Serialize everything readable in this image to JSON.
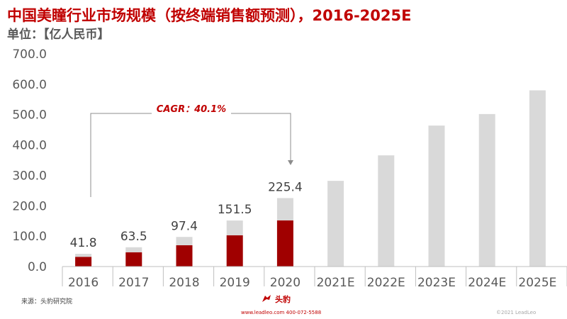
{
  "title": "中国美瞳行业市场规模（按终端销售额预测），2016-2025E",
  "subtitle": "单位：【亿人民币】",
  "annotation": "CAGR：40.1%",
  "footer": {
    "source": "来源：头豹研究院",
    "brand": "头豹",
    "contact": "www.leadleo.com  400-072-5588",
    "copyright": "©2021 LeadLeo"
  },
  "colors": {
    "title": "#c00000",
    "bar_dark": "#a00000",
    "bar_light": "#d9d9d9",
    "axis_text": "#595959"
  },
  "chart_data": {
    "type": "bar",
    "categories": [
      "2016",
      "2017",
      "2018",
      "2019",
      "2020",
      "2021E",
      "2022E",
      "2023E",
      "2024E",
      "2025E"
    ],
    "totals": [
      41.8,
      63.5,
      97.4,
      151.5,
      225.4,
      282,
      366,
      464,
      502,
      580
    ],
    "data_labels": [
      "41.8",
      "63.5",
      "97.4",
      "151.5",
      "225.4",
      "",
      "",
      "",
      "",
      ""
    ],
    "series": [
      {
        "values": [
          32,
          47,
          70,
          103,
          152,
          null,
          null,
          null,
          null,
          null
        ]
      },
      {
        "values": [
          9.8,
          16.5,
          27.4,
          48.5,
          73.4,
          282,
          366,
          464,
          502,
          580
        ]
      }
    ],
    "yticks": [
      "0.0",
      "100.0",
      "200.0",
      "300.0",
      "400.0",
      "500.0",
      "600.0",
      "700.0"
    ],
    "ylim": [
      0,
      700
    ],
    "grid": false,
    "legend": "none"
  }
}
